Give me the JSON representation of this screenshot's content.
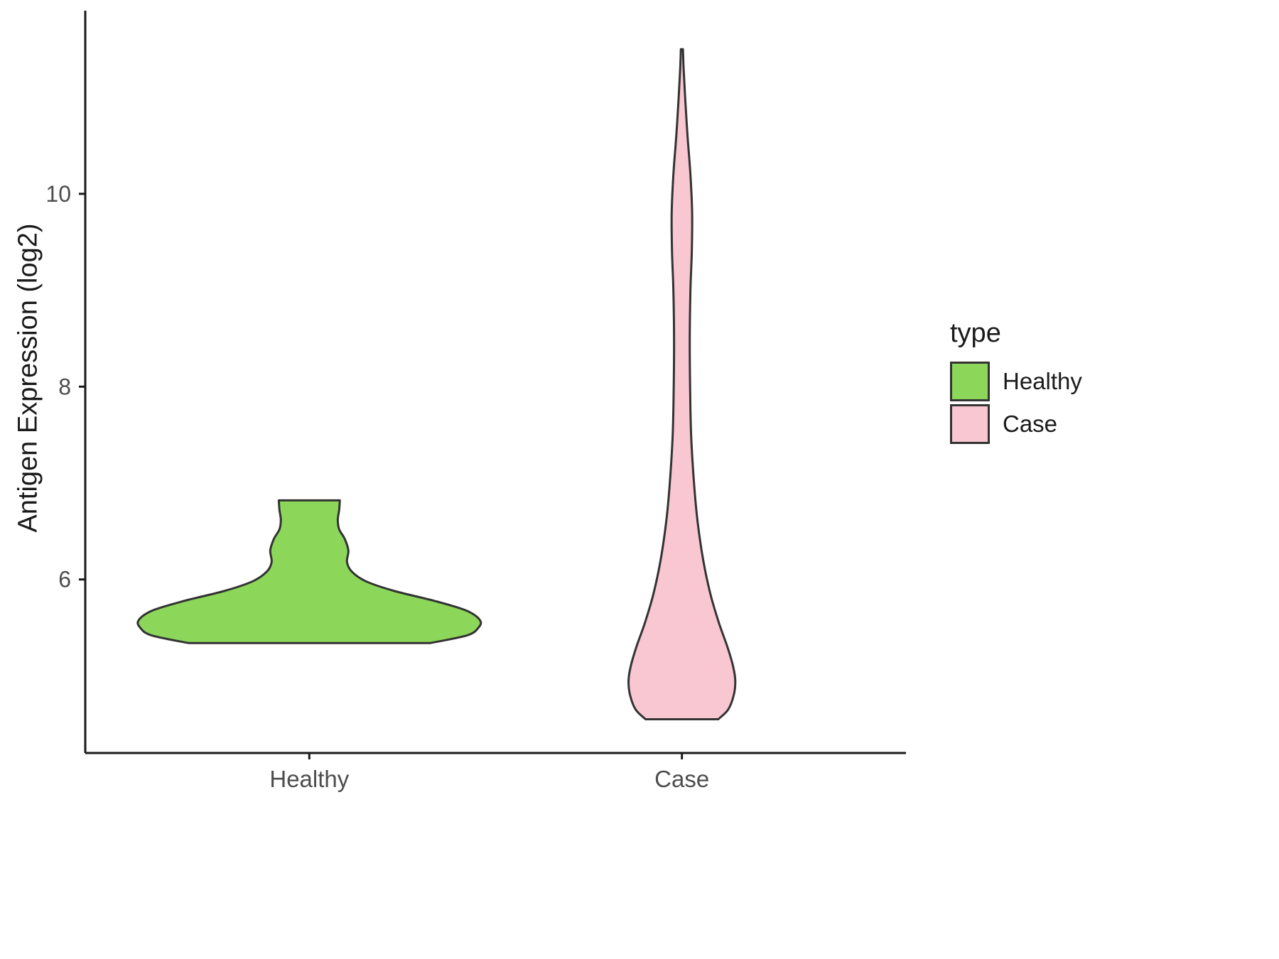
{
  "chart_data": {
    "type": "violin",
    "ylabel": "Antigen Expression (log2)",
    "categories": [
      "Healthy",
      "Case"
    ],
    "y_ticks": [
      6,
      8,
      10
    ],
    "y_domain": [
      4.2,
      11.9
    ],
    "grid": false,
    "axis_color": "#1a1a1a",
    "stroke_color": "#333333",
    "tick_label_color": "#4d4d4d",
    "legend": {
      "title": "type",
      "position": "right",
      "entries": [
        {
          "label": "Healthy",
          "color": "#8cd75a"
        },
        {
          "label": "Case",
          "color": "#f8c7d2"
        }
      ]
    },
    "violins": [
      {
        "category": "Healthy",
        "color": "#8cd75a",
        "width_profile": [
          [
            5.34,
            0.708
          ],
          [
            5.42,
            0.925
          ],
          [
            5.5,
            0.992
          ],
          [
            5.58,
            1.0
          ],
          [
            5.68,
            0.917
          ],
          [
            5.78,
            0.729
          ],
          [
            5.88,
            0.5
          ],
          [
            5.98,
            0.333
          ],
          [
            6.08,
            0.25
          ],
          [
            6.18,
            0.221
          ],
          [
            6.3,
            0.229
          ],
          [
            6.42,
            0.208
          ],
          [
            6.52,
            0.175
          ],
          [
            6.62,
            0.167
          ],
          [
            6.72,
            0.175
          ],
          [
            6.82,
            0.179
          ]
        ]
      },
      {
        "category": "Case",
        "color": "#f8c7d2",
        "width_profile": [
          [
            4.55,
            0.213
          ],
          [
            4.65,
            0.271
          ],
          [
            4.8,
            0.304
          ],
          [
            4.95,
            0.313
          ],
          [
            5.1,
            0.3
          ],
          [
            5.3,
            0.267
          ],
          [
            5.55,
            0.217
          ],
          [
            5.85,
            0.167
          ],
          [
            6.2,
            0.125
          ],
          [
            6.6,
            0.092
          ],
          [
            7.0,
            0.071
          ],
          [
            7.5,
            0.054
          ],
          [
            8.0,
            0.048
          ],
          [
            8.5,
            0.046
          ],
          [
            9.0,
            0.05
          ],
          [
            9.4,
            0.058
          ],
          [
            9.8,
            0.06
          ],
          [
            10.2,
            0.05
          ],
          [
            10.6,
            0.033
          ],
          [
            11.0,
            0.019
          ],
          [
            11.3,
            0.01
          ],
          [
            11.5,
            0.006
          ]
        ]
      }
    ]
  }
}
